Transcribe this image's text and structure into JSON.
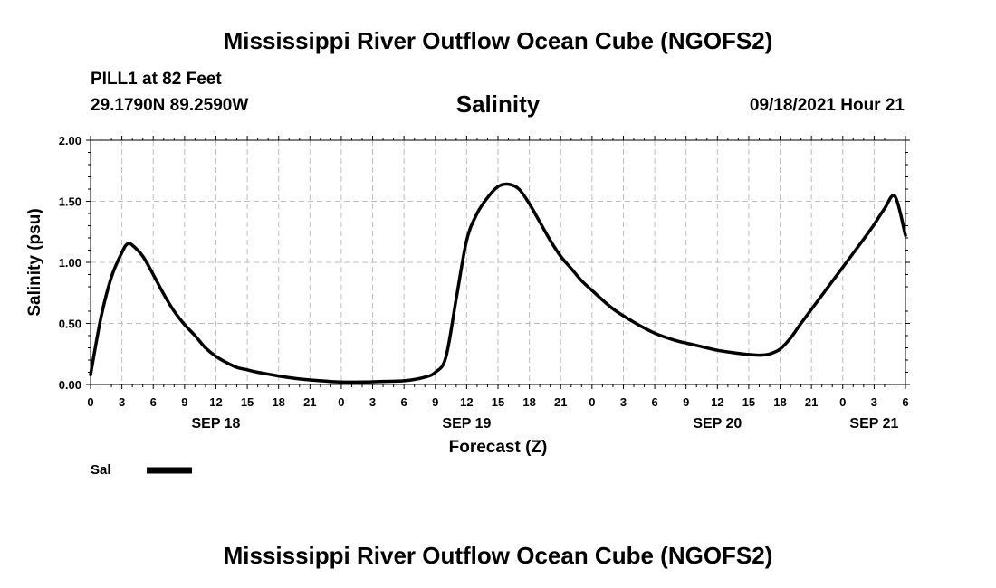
{
  "header": {
    "title": "Mississippi River Outflow Ocean Cube (NGOFS2)",
    "station": "PILL1 at 82 Feet",
    "coordinates": "29.1790N  89.2590W",
    "variable": "Salinity",
    "datetime": "09/18/2021 Hour 21"
  },
  "footer": {
    "title": "Mississippi River Outflow Ocean Cube (NGOFS2)"
  },
  "chart_data": {
    "type": "line",
    "title": "Salinity",
    "xlabel": "Forecast (Z)",
    "ylabel": "Salinity (psu)",
    "ylim": [
      0,
      2
    ],
    "y_ticks": [
      "0.00",
      "0.50",
      "1.00",
      "1.50",
      "2.00"
    ],
    "x_range_hours": [
      0,
      78
    ],
    "x_tick_labels": [
      "0",
      "3",
      "6",
      "9",
      "12",
      "15",
      "18",
      "21",
      "0",
      "3",
      "6",
      "9",
      "12",
      "15",
      "18",
      "21",
      "0",
      "3",
      "6",
      "9",
      "12",
      "15",
      "18",
      "21",
      "0",
      "3",
      "6"
    ],
    "date_labels": [
      {
        "label": "SEP 18",
        "hour": 12
      },
      {
        "label": "SEP 19",
        "hour": 36
      },
      {
        "label": "SEP 20",
        "hour": 60
      },
      {
        "label": "SEP 21",
        "hour": 75
      }
    ],
    "grid": true,
    "legend": [
      {
        "name": "Sal",
        "color": "#000000"
      }
    ],
    "series": [
      {
        "name": "Sal",
        "x": [
          0,
          1,
          2,
          3,
          3.5,
          4,
          5,
          6,
          7,
          8,
          9,
          10,
          11,
          12,
          13,
          14,
          15,
          16,
          18,
          20,
          22,
          24,
          26,
          28,
          30,
          32,
          33,
          34,
          35,
          36,
          37,
          38,
          39,
          40,
          41,
          42,
          43,
          44,
          45,
          46,
          47,
          48,
          50,
          52,
          54,
          56,
          58,
          60,
          62,
          63,
          64,
          65,
          66,
          67,
          68,
          70,
          72,
          74,
          75,
          76,
          77,
          78
        ],
        "values": [
          0.08,
          0.55,
          0.88,
          1.08,
          1.15,
          1.14,
          1.05,
          0.9,
          0.74,
          0.6,
          0.49,
          0.4,
          0.3,
          0.23,
          0.18,
          0.14,
          0.12,
          0.1,
          0.07,
          0.045,
          0.03,
          0.02,
          0.02,
          0.025,
          0.03,
          0.06,
          0.1,
          0.22,
          0.7,
          1.18,
          1.4,
          1.53,
          1.62,
          1.64,
          1.6,
          1.48,
          1.33,
          1.18,
          1.05,
          0.95,
          0.85,
          0.77,
          0.62,
          0.51,
          0.42,
          0.36,
          0.32,
          0.28,
          0.255,
          0.245,
          0.24,
          0.25,
          0.29,
          0.38,
          0.5,
          0.73,
          0.96,
          1.19,
          1.31,
          1.44,
          1.54,
          1.22
        ]
      }
    ]
  }
}
